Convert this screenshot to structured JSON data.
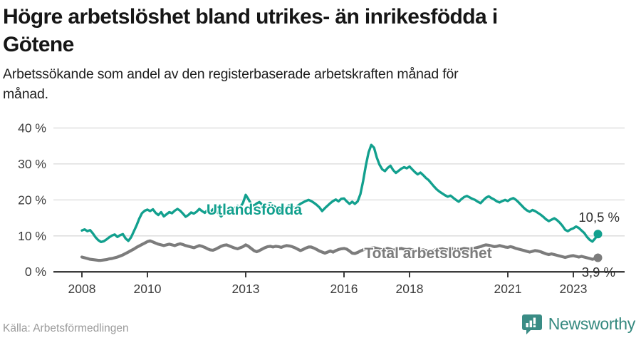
{
  "header": {
    "title_lines": [
      "Högre arbetslöshet bland utrikes- än inrikesfödda i",
      "Götene"
    ],
    "subtitle_lines": [
      "Arbetssökande som andel av den registerbaserade arbetskraften månad för",
      "månad."
    ]
  },
  "chart_data": {
    "type": "line",
    "title": "Högre arbetslöshet bland utrikes- än inrikesfödda i Götene",
    "subtitle": "Arbetssökande som andel av den registerbaserade arbetskraften månad för månad.",
    "x_start_year": 2008,
    "x_interval": "monthly",
    "x_end": "2023-10",
    "ylim": [
      0,
      40
    ],
    "grid": "horizontal",
    "legend_position": "inline-labels",
    "y_ticks": [
      "0 %",
      "10 %",
      "20 %",
      "30 %",
      "40 %"
    ],
    "x_ticks": [
      "2008",
      "2010",
      "2013",
      "2016",
      "2018",
      "2021",
      "2023"
    ],
    "series": [
      {
        "name": "Utlandsfödda",
        "color": "#12a08e",
        "end_value": 10.5,
        "end_label": "10,5 %",
        "values": [
          11.5,
          11.8,
          11.3,
          11.6,
          10.7,
          9.6,
          8.8,
          8.3,
          8.5,
          9.0,
          9.6,
          10.1,
          10.4,
          9.7,
          10.2,
          10.5,
          9.3,
          8.6,
          9.6,
          11.2,
          12.9,
          14.8,
          16.3,
          17.0,
          17.3,
          16.9,
          17.4,
          16.4,
          15.8,
          16.6,
          15.4,
          16.0,
          16.6,
          16.3,
          17.0,
          17.5,
          17.0,
          16.2,
          15.3,
          15.8,
          16.5,
          16.2,
          16.7,
          17.5,
          16.9,
          16.4,
          17.2,
          16.6,
          17.4,
          17.0,
          16.3,
          15.4,
          16.2,
          16.8,
          16.4,
          17.0,
          17.8,
          18.3,
          17.9,
          19.2,
          21.4,
          20.2,
          18.8,
          18.4,
          19.0,
          19.4,
          18.7,
          18.3,
          18.7,
          19.1,
          18.5,
          17.9,
          17.3,
          16.8,
          17.5,
          18.0,
          18.5,
          18.1,
          17.7,
          18.3,
          18.9,
          19.3,
          19.7,
          20.0,
          19.7,
          19.2,
          18.6,
          17.9,
          16.9,
          17.7,
          18.4,
          19.1,
          19.7,
          20.1,
          19.6,
          20.3,
          20.4,
          19.6,
          18.9,
          19.5,
          18.9,
          19.6,
          21.6,
          25.2,
          29.6,
          33.2,
          35.3,
          34.5,
          31.8,
          29.8,
          28.5,
          28.0,
          28.9,
          29.5,
          28.3,
          27.5,
          28.1,
          28.7,
          29.1,
          28.8,
          29.3,
          28.5,
          27.7,
          27.1,
          27.6,
          26.9,
          26.1,
          25.5,
          24.6,
          23.7,
          22.9,
          22.3,
          21.8,
          21.3,
          20.9,
          21.2,
          20.6,
          20.0,
          19.5,
          20.2,
          20.8,
          21.1,
          20.7,
          20.3,
          20.0,
          19.5,
          19.1,
          19.9,
          20.6,
          21.0,
          20.5,
          20.1,
          19.6,
          19.3,
          19.7,
          20.0,
          19.7,
          20.2,
          20.5,
          20.0,
          19.3,
          18.5,
          17.7,
          17.1,
          16.7,
          17.2,
          16.9,
          16.4,
          15.9,
          15.3,
          14.6,
          14.1,
          14.5,
          14.9,
          14.4,
          13.7,
          12.8,
          11.7,
          11.3,
          11.8,
          12.1,
          12.6,
          12.2,
          11.5,
          10.8,
          9.7,
          8.9,
          8.4,
          9.3,
          10.5
        ]
      },
      {
        "name": "Total arbetslöshet",
        "color": "#7c7c7c",
        "end_value": 3.9,
        "end_label": "3,9 %",
        "values": [
          4.1,
          3.9,
          3.7,
          3.5,
          3.4,
          3.3,
          3.2,
          3.2,
          3.3,
          3.4,
          3.6,
          3.7,
          3.9,
          4.1,
          4.4,
          4.7,
          5.1,
          5.5,
          5.9,
          6.3,
          6.8,
          7.2,
          7.6,
          8.0,
          8.4,
          8.6,
          8.3,
          8.0,
          7.7,
          7.5,
          7.3,
          7.5,
          7.7,
          7.5,
          7.3,
          7.6,
          7.8,
          7.6,
          7.3,
          7.1,
          6.9,
          6.7,
          7.0,
          7.3,
          7.1,
          6.8,
          6.4,
          6.1,
          6.0,
          6.3,
          6.7,
          7.1,
          7.4,
          7.5,
          7.2,
          6.9,
          6.6,
          6.4,
          6.7,
          7.0,
          7.5,
          7.1,
          6.5,
          5.9,
          5.6,
          5.9,
          6.3,
          6.7,
          7.0,
          7.1,
          6.9,
          7.1,
          7.0,
          6.8,
          7.1,
          7.3,
          7.2,
          7.0,
          6.7,
          6.3,
          5.9,
          6.2,
          6.6,
          6.9,
          6.9,
          6.6,
          6.2,
          5.8,
          5.5,
          5.2,
          5.5,
          5.8,
          5.5,
          5.9,
          6.2,
          6.4,
          6.5,
          6.3,
          5.8,
          5.2,
          5.1,
          5.4,
          5.8,
          6.1,
          6.3,
          6.5,
          6.6,
          6.7,
          6.5,
          6.3,
          6.1,
          6.3,
          6.5,
          6.3,
          6.0,
          6.2,
          6.4,
          6.5,
          6.3,
          6.2,
          6.3,
          6.1,
          5.9,
          5.7,
          5.9,
          6.1,
          5.9,
          5.7,
          5.9,
          6.0,
          6.2,
          6.3,
          6.4,
          6.2,
          6.1,
          6.3,
          6.5,
          6.4,
          6.2,
          6.3,
          6.5,
          6.4,
          6.3,
          6.5,
          6.6,
          6.8,
          7.0,
          7.3,
          7.5,
          7.4,
          7.2,
          7.0,
          7.1,
          7.3,
          7.1,
          6.9,
          6.8,
          7.0,
          6.8,
          6.5,
          6.3,
          6.1,
          5.9,
          5.7,
          5.5,
          5.7,
          5.9,
          5.8,
          5.6,
          5.3,
          5.0,
          4.8,
          5.0,
          4.8,
          4.6,
          4.4,
          4.2,
          4.0,
          4.2,
          4.4,
          4.5,
          4.3,
          4.1,
          4.3,
          4.1,
          3.9,
          3.7,
          3.5,
          3.7,
          3.9
        ]
      }
    ]
  },
  "footer": {
    "source": "Källa: Arbetsförmedlingen",
    "brand": "Newsworthy"
  },
  "colors": {
    "accent_teal": "#12a08e",
    "series_gray": "#7c7c7c",
    "axis": "#3d3d3d",
    "grid": "#d9d9d9",
    "brand_teal": "#35897f"
  }
}
